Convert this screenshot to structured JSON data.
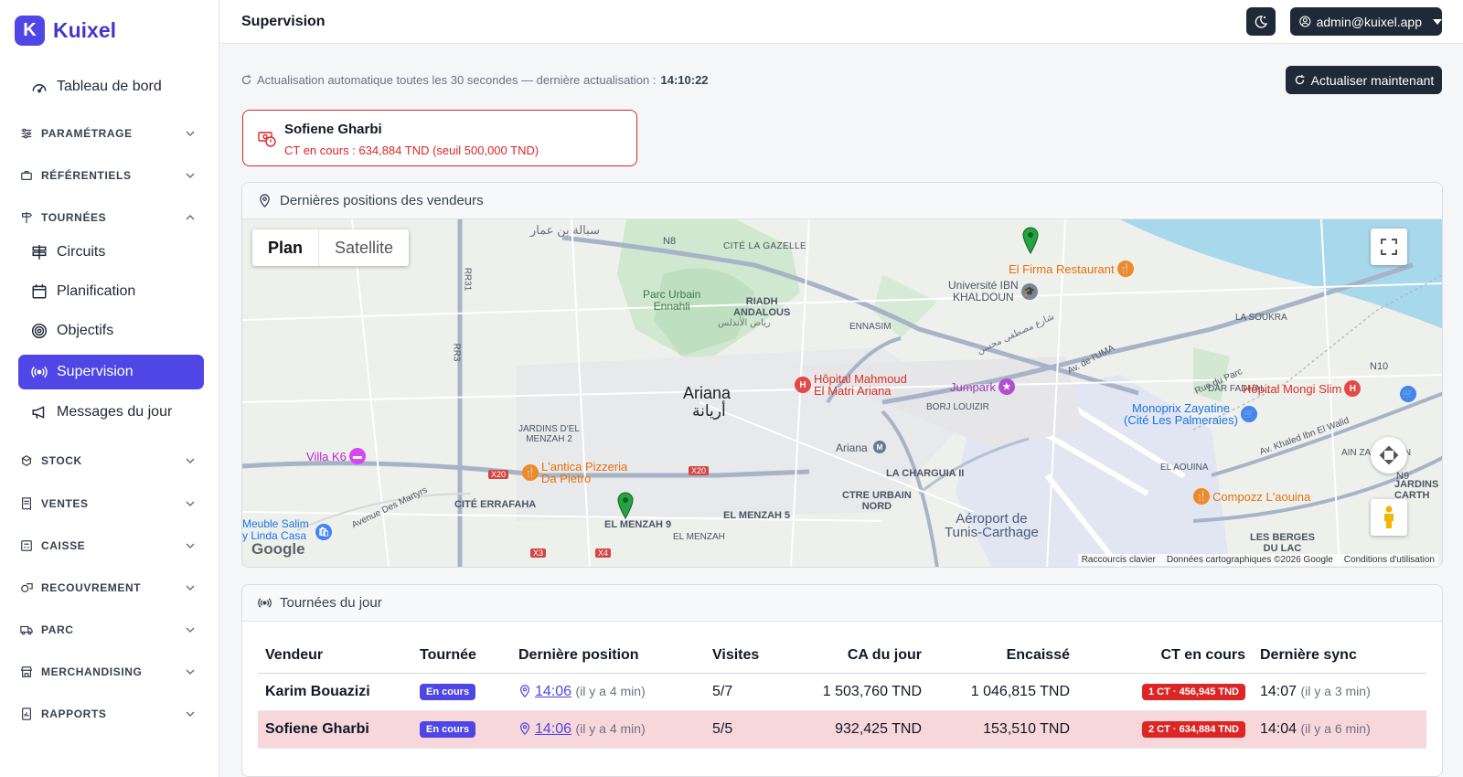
{
  "brand": {
    "logo_letter": "K",
    "name": "Kuixel"
  },
  "sidebar": {
    "dashboard": {
      "label": "Tableau de bord",
      "icon": "gauge-icon"
    },
    "sections": [
      {
        "label": "PARAMÉTRAGE",
        "icon": "sliders-icon",
        "expanded": false
      },
      {
        "label": "RÉFÉRENTIELS",
        "icon": "briefcase-icon",
        "expanded": false
      },
      {
        "label": "TOURNÉES",
        "icon": "signpost-icon",
        "expanded": true
      },
      {
        "label": "STOCK",
        "icon": "boxes-icon",
        "expanded": false
      },
      {
        "label": "VENTES",
        "icon": "receipt-icon",
        "expanded": false
      },
      {
        "label": "CAISSE",
        "icon": "cash-register-icon",
        "expanded": false
      },
      {
        "label": "RECOUVREMENT",
        "icon": "cash-coin-icon",
        "expanded": false
      },
      {
        "label": "PARC",
        "icon": "truck-icon",
        "expanded": false
      },
      {
        "label": "MERCHANDISING",
        "icon": "shop-icon",
        "expanded": false
      },
      {
        "label": "RAPPORTS",
        "icon": "report-icon",
        "expanded": false
      }
    ],
    "tournees_items": [
      {
        "label": "Circuits",
        "icon": "signpost-split-icon"
      },
      {
        "label": "Planification",
        "icon": "calendar-icon"
      },
      {
        "label": "Objectifs",
        "icon": "bullseye-icon"
      },
      {
        "label": "Supervision",
        "icon": "broadcast-icon",
        "active": true
      },
      {
        "label": "Messages du jour",
        "icon": "megaphone-icon"
      }
    ]
  },
  "topbar": {
    "title": "Supervision",
    "user": "admin@kuixel.app"
  },
  "refresh": {
    "text": "Actualisation automatique toutes les 30 secondes — dernière actualisation :",
    "time": "14:10:22",
    "button": "Actualiser maintenant"
  },
  "alert": {
    "name": "Sofiene Gharbi",
    "text": "CT en cours : 634,884 TND (seuil 500,000 TND)"
  },
  "map_card": {
    "title": "Dernières positions des vendeurs",
    "toggle": [
      "Plan",
      "Satellite"
    ],
    "labels": {
      "ariana": "Ariana",
      "ariana_ar": "أريانة",
      "parc": "Parc Urbain\nEnnahli",
      "riadh": "RIADH\nANDALOUS",
      "gazelle": "CITÉ LA GAZELLE",
      "ennasim": "ENNASIM",
      "errafaha": "CITÉ ERRAFAHA",
      "menzah9": "EL MENZAH 9",
      "menzah5": "EL MENZAH 5",
      "menzah": "EL MENZAH",
      "jardins": "JARDINS D'EL\nMENZAH 2",
      "charguia": "LA CHARGUIA II",
      "ctre": "CTRE URBAIN\nNORD",
      "borj": "BORJ LOUIZIR",
      "dar": "DAR FADHAL",
      "aouina": "EL AOUINA",
      "ain": "AIN ZAGHOUAN",
      "soukra": "LA SOUKRA",
      "berges": "LES BERGES\nDU LAC",
      "jardins2": "JARDINS\nCARTH",
      "aeroport": "Aéroport de\nTunis-Carthage",
      "ariana_station": "Ariana",
      "avenue": "Avenue Des Martyrs",
      "av_uma": "Av. de l'UMA",
      "rue_parc": "Rue du Parc",
      "khaled": "Av. Khaled Ibn El Walid",
      "meuble": "Meuble Salim\ny Linda Casa",
      "ar_1": "سبالة بن عمار",
      "ar_2": "رياض الأندلس",
      "ar_3": "شارع مصطفى محسن"
    },
    "pois": {
      "firma": "El Firma Restaurant",
      "ibn": "Université IBN\nKHALDOUN",
      "hopital_ma": "Hôpital Mahmoud\nEl Matri Ariana",
      "jumpark": "Jumpark",
      "mongi": "Hôpital Mongi Slim",
      "monoprix": "Monoprix Zayatine\n(Cité Les Palmeraies)",
      "villa": "Villa K6",
      "antica": "L'antica Pizzeria\nDa Pietro",
      "compozz": "Compozz L'aouina"
    },
    "roads": [
      "N8",
      "N10",
      "N9",
      "X20",
      "X3",
      "X4",
      "RR31",
      "RR3"
    ],
    "google": "Google",
    "attribution": [
      "Raccourcis clavier",
      "Données cartographiques ©2026 Google",
      "Conditions d'utilisation"
    ]
  },
  "tours_card": {
    "title": "Tournées du jour",
    "columns": [
      "Vendeur",
      "Tournée",
      "Dernière position",
      "Visites",
      "CA du jour",
      "Encaissé",
      "CT en cours",
      "Dernière sync"
    ],
    "rows": [
      {
        "vendeur": "Karim Bouazizi",
        "tournee": "En cours",
        "position_time": "14:06",
        "position_ago": "(il y a 4 min)",
        "visites": "5/7",
        "ca": "1 503,760 TND",
        "encaisse": "1 046,815 TND",
        "ct": "1 CT · 456,945 TND",
        "sync_time": "14:07",
        "sync_ago": "(il y a 3 min)",
        "alert": false
      },
      {
        "vendeur": "Sofiene Gharbi",
        "tournee": "En cours",
        "position_time": "14:06",
        "position_ago": "(il y a 4 min)",
        "visites": "5/5",
        "ca": "932,425 TND",
        "encaisse": "153,510 TND",
        "ct": "2 CT · 634,884 TND",
        "sync_time": "14:04",
        "sync_ago": "(il y a 6 min)",
        "alert": true
      }
    ]
  },
  "colors": {
    "primary": "#4f46e5",
    "dark": "#1f2937",
    "danger": "#dc2626",
    "alert_row": "#f8d7da"
  }
}
